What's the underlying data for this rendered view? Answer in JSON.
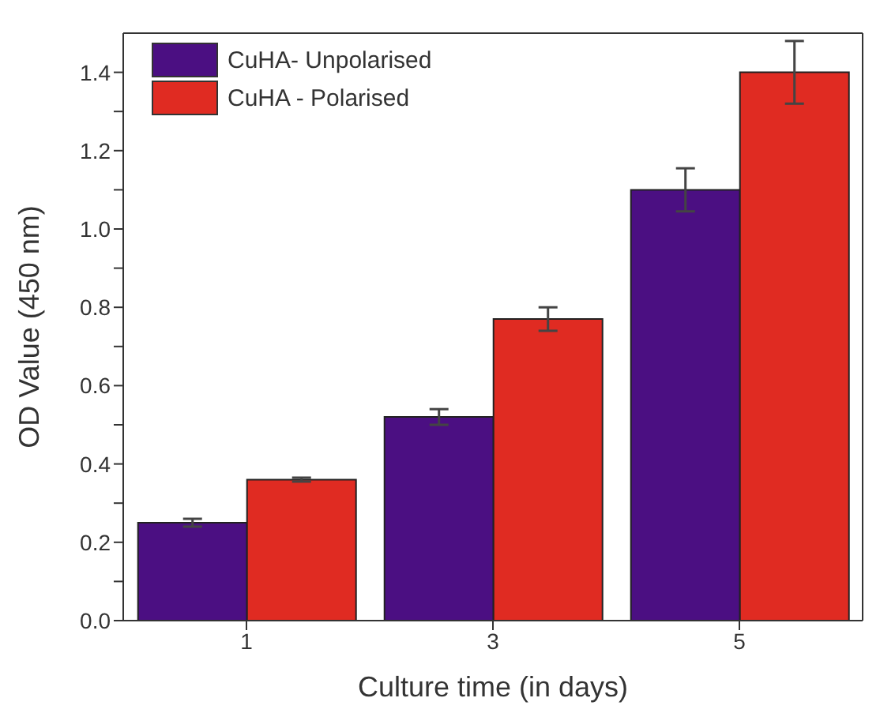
{
  "chart_data": {
    "type": "bar",
    "xlabel": "Culture time (in days)",
    "ylabel": "OD Value (450 nm)",
    "categories": [
      "1",
      "3",
      "5"
    ],
    "series": [
      {
        "name": "CuHA- Unpolarised",
        "color": "#4b0f82",
        "values": [
          0.25,
          0.52,
          1.1
        ],
        "errors": [
          0.01,
          0.02,
          0.055
        ]
      },
      {
        "name": "CuHA - Polarised",
        "color": "#e02b22",
        "values": [
          0.36,
          0.77,
          1.4
        ],
        "errors": [
          0.005,
          0.03,
          0.08
        ]
      }
    ],
    "ylim": [
      0,
      1.5
    ],
    "yticks": [
      {
        "value": 0,
        "label": "0.0"
      },
      {
        "value": 0.1,
        "label": null
      },
      0.2,
      {
        "value": 0.3,
        "label": null
      },
      0.4,
      {
        "value": 0.5,
        "label": null
      },
      0.6,
      {
        "value": 0.7,
        "label": null
      },
      0.8,
      {
        "value": 0.9,
        "label": null
      },
      {
        "value": 1,
        "label": "1.0"
      },
      {
        "value": 1.1,
        "label": null
      },
      1.2,
      {
        "value": 1.3,
        "label": null
      },
      1.4
    ],
    "grid": false,
    "legend": "top left"
  }
}
